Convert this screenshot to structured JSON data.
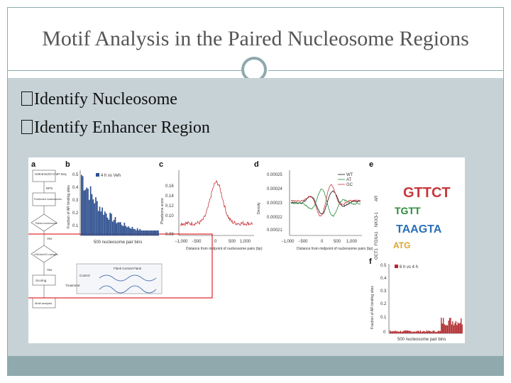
{
  "slide": {
    "title": "Motif Analysis in the Paired Nucleosome Regions",
    "bullets": [
      {
        "glyph": "�",
        "text": "Identify Nucleosome"
      },
      {
        "glyph": "�",
        "text": "Identify Enhancer Region"
      }
    ],
    "colors": {
      "accent": "#8fa9ad",
      "content_bg": "#c6d2d6",
      "highlight_box": "#e0242a"
    }
  },
  "figure": {
    "panel_labels": [
      "a",
      "b",
      "c",
      "d",
      "e",
      "f"
    ],
    "a": {
      "steps": [
        "H3K4me2/3 ChIP-Seq",
        "NPS",
        "Positioned nucleosomes",
        "Paired nucleosome",
        "Yes",
        "H3K4me2/3 changes",
        "Yes",
        "Scoring",
        "Motif analysis"
      ],
      "inset": {
        "header": "Flank Central Flank",
        "rows": [
          "Control",
          "Treatment"
        ]
      }
    },
    "b": {
      "legend": "4 h vs Veh",
      "ylabel": "Fraction of AR binding sites",
      "xlabel": "500 nucleosome pair bins",
      "yticks": [
        "0.5",
        "0.4",
        "0.3",
        "0.2",
        "0.1"
      ]
    },
    "c": {
      "ylabel": "Phastcons score",
      "xlabel": "Distance from midpoint of nucleosome pairs (bp)",
      "yticks": [
        "0.16",
        "0.14",
        "0.12",
        "0.10",
        "0.08"
      ],
      "xticks": [
        "−1,000",
        "−500",
        "0",
        "500",
        "1,000"
      ]
    },
    "d": {
      "ylabel": "Density",
      "xlabel": "Distance from midpoint of nucleosome pairs (bp)",
      "yticks": [
        "0.00025",
        "0.00024",
        "0.00023",
        "0.00022",
        "0.00021"
      ],
      "xticks": [
        "−1,000",
        "−500",
        "0",
        "500",
        "1,000"
      ],
      "legend": [
        "WT",
        "AT",
        "GC"
      ]
    },
    "e": {
      "logos": [
        "GTTCT",
        "TGTT",
        "TAAGTA",
        "ATG"
      ],
      "labels": [
        "AR",
        "NKX3-1",
        "FOXA1",
        "OCT1"
      ]
    },
    "f": {
      "legend": "6 h vs 4 h",
      "ylabel": "Fraction of AR binding sites",
      "xlabel": "500 nucleosome pair bins",
      "yticks": [
        "0.5",
        "0.4",
        "0.3",
        "0.2",
        "0.1",
        "0"
      ]
    }
  }
}
